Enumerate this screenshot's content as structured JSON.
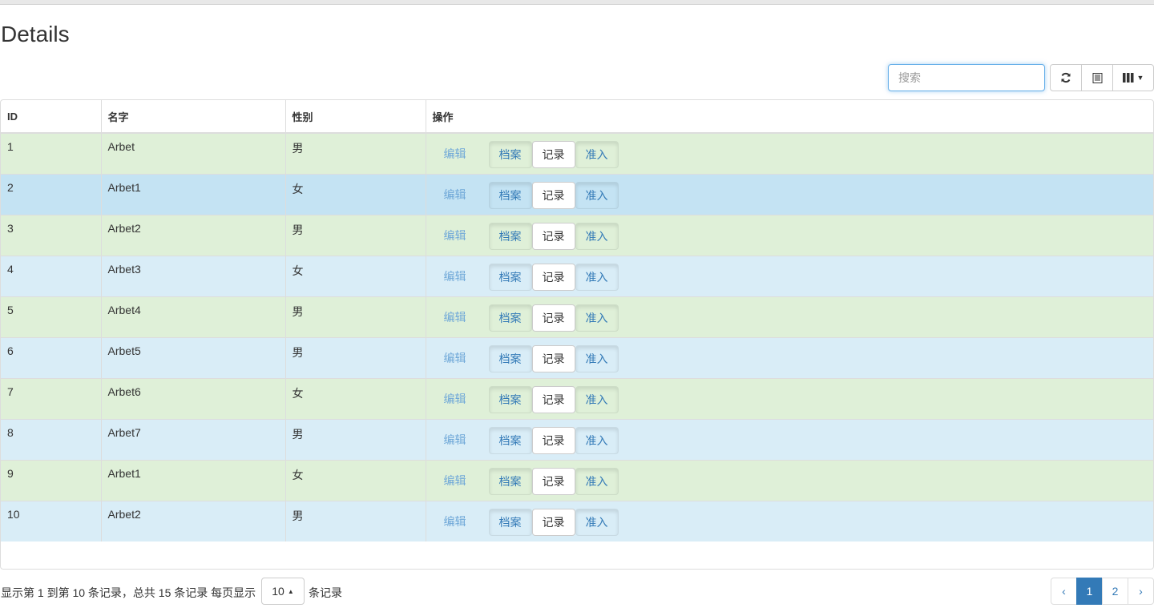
{
  "title": "Details",
  "toolbar": {
    "search_placeholder": "搜索",
    "refresh_icon": "refresh-icon",
    "toggle_icon": "list-icon",
    "columns_icon": "columns-icon"
  },
  "table": {
    "headers": [
      "ID",
      "名字",
      "性别",
      "操作"
    ],
    "rows": [
      {
        "id": "1",
        "name": "Arbet",
        "gender": "男"
      },
      {
        "id": "2",
        "name": "Arbet1",
        "gender": "女"
      },
      {
        "id": "3",
        "name": "Arbet2",
        "gender": "男"
      },
      {
        "id": "4",
        "name": "Arbet3",
        "gender": "女"
      },
      {
        "id": "5",
        "name": "Arbet4",
        "gender": "男"
      },
      {
        "id": "6",
        "name": "Arbet5",
        "gender": "男"
      },
      {
        "id": "7",
        "name": "Arbet6",
        "gender": "女"
      },
      {
        "id": "8",
        "name": "Arbet7",
        "gender": "男"
      },
      {
        "id": "9",
        "name": "Arbet1",
        "gender": "女"
      },
      {
        "id": "10",
        "name": "Arbet2",
        "gender": "男"
      }
    ],
    "actions": {
      "edit": "编辑",
      "archive": "档案",
      "record": "记录",
      "admit": "准入"
    },
    "colors": {
      "success": "#dff0d8",
      "info": "#d9edf7",
      "hover": "#c4e3f3"
    }
  },
  "footer": {
    "info": "显示第 1 到第 10 条记录，总共 15 条记录 每页显示",
    "page_size": "10",
    "after": "条记录"
  },
  "pagination": {
    "prev": "‹",
    "pages": [
      "1",
      "2"
    ],
    "active": "1",
    "next": "›"
  }
}
